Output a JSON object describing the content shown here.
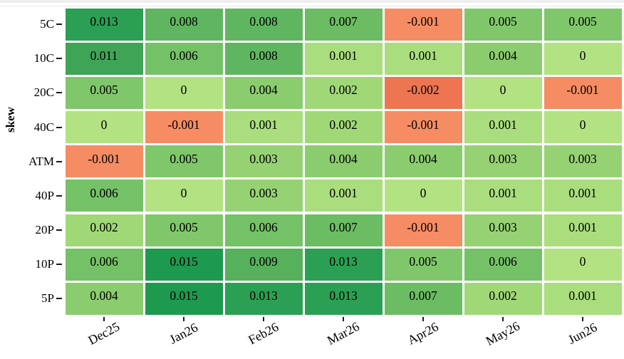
{
  "chart_data": {
    "type": "heatmap",
    "title": "",
    "xlabel": "",
    "ylabel": "skew",
    "rows": [
      "5C",
      "10C",
      "20C",
      "40C",
      "ATM",
      "40P",
      "20P",
      "10P",
      "5P"
    ],
    "columns": [
      "Dec25",
      "Jan26",
      "Feb26",
      "Mar26",
      "Apr26",
      "May26",
      "Jun26"
    ],
    "values": [
      [
        0.013,
        0.008,
        0.008,
        0.007,
        -0.001,
        0.005,
        0.005
      ],
      [
        0.011,
        0.006,
        0.008,
        0.001,
        0.001,
        0.004,
        0
      ],
      [
        0.005,
        0,
        0.004,
        0.002,
        -0.002,
        0,
        -0.001
      ],
      [
        0,
        -0.001,
        0.001,
        0.002,
        -0.001,
        0.001,
        0
      ],
      [
        -0.001,
        0.005,
        0.003,
        0.004,
        0.004,
        0.003,
        0.003
      ],
      [
        0.006,
        0,
        0.003,
        0.001,
        0,
        0.001,
        0.001
      ],
      [
        0.002,
        0.005,
        0.006,
        0.007,
        -0.001,
        0.003,
        0.001
      ],
      [
        0.006,
        0.015,
        0.009,
        0.013,
        0.005,
        0.006,
        0
      ],
      [
        0.004,
        0.015,
        0.013,
        0.013,
        0.007,
        0.002,
        0.001
      ]
    ],
    "value_colors": {
      "-0.002": "#ee7551",
      "-0.001": "#f68c63",
      "0": "#b2e282",
      "0.001": "#a9dd7d",
      "0.002": "#a0d878",
      "0.003": "#96d273",
      "0.004": "#8bcc6f",
      "0.005": "#80c76b",
      "0.006": "#75c167",
      "0.007": "#6bbc63",
      "0.008": "#60b660",
      "0.009": "#56b05c",
      "0.011": "#40a457",
      "0.013": "#2b9f53",
      "0.015": "#1e9950"
    },
    "legend_position": "none",
    "grid": false,
    "cell_gap_color": "#ffffff",
    "accent_positive": "#1e9950",
    "accent_negative": "#ee7551"
  }
}
